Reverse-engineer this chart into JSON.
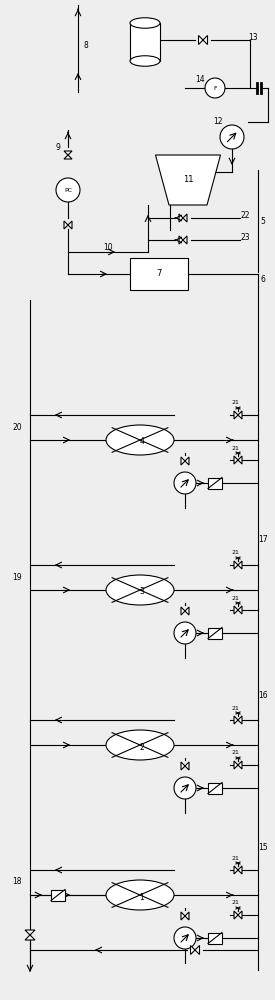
{
  "bg_color": "#eeeeee",
  "line_color": "#000000",
  "fig_width": 2.75,
  "fig_height": 10.0,
  "dpi": 100
}
